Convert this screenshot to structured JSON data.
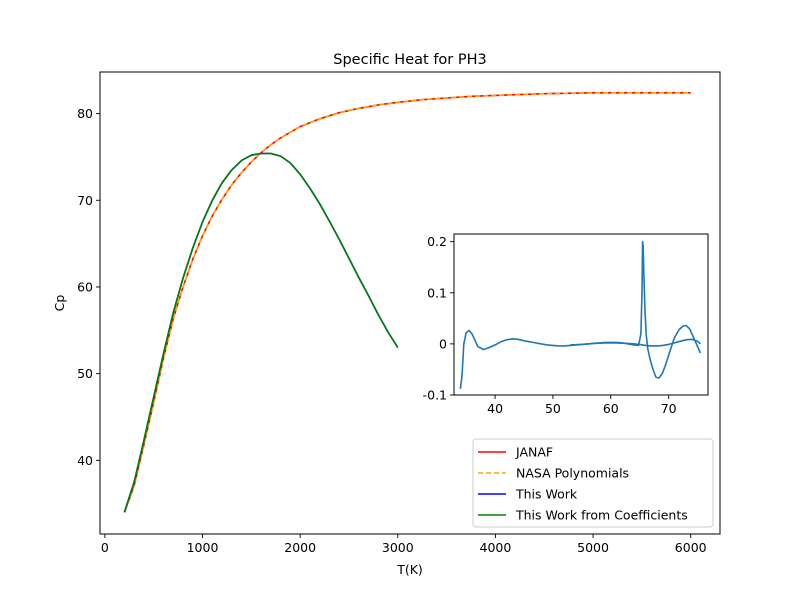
{
  "chart_data": [
    {
      "type": "line",
      "title": "Specific Heat for PH3",
      "xlabel": "T(K)",
      "ylabel": "Cp",
      "xlim": [
        -50,
        6300
      ],
      "ylim": [
        31.5,
        84.8
      ],
      "xticks": [
        0,
        1000,
        2000,
        3000,
        4000,
        5000,
        6000
      ],
      "yticks": [
        40,
        50,
        60,
        70,
        80
      ],
      "grid": false,
      "legend": "lower right",
      "series": [
        {
          "name": "JANAF",
          "color": "#ff0000",
          "style": "solid",
          "x": [
            200,
            300,
            400,
            500,
            600,
            700,
            800,
            900,
            1000,
            1100,
            1200,
            1300,
            1400,
            1500,
            1600,
            1700,
            1800,
            2000,
            2200,
            2400,
            2600,
            2800,
            3000,
            3250,
            3500,
            3750,
            4000,
            4500,
            5000,
            5500,
            6000
          ],
          "y": [
            34.0,
            37.1,
            41.8,
            46.7,
            51.8,
            56.3,
            60.0,
            63.2,
            65.9,
            68.2,
            70.1,
            71.8,
            73.2,
            74.4,
            75.5,
            76.4,
            77.2,
            78.5,
            79.4,
            80.1,
            80.6,
            81.0,
            81.3,
            81.6,
            81.8,
            82.0,
            82.1,
            82.3,
            82.4,
            82.4,
            82.4
          ]
        },
        {
          "name": "NASA Polynomials",
          "color": "#ffa500",
          "style": "dashed",
          "x": [
            200,
            300,
            400,
            500,
            600,
            700,
            800,
            900,
            1000,
            1100,
            1200,
            1300,
            1400,
            1500,
            1600,
            1700,
            1800,
            2000,
            2200,
            2400,
            2600,
            2800,
            3000,
            3250,
            3500,
            3750,
            4000,
            4500,
            5000,
            5500,
            6000
          ],
          "y": [
            34.0,
            37.1,
            41.8,
            46.7,
            51.8,
            56.3,
            60.0,
            63.2,
            65.9,
            68.2,
            70.1,
            71.8,
            73.2,
            74.4,
            75.5,
            76.4,
            77.2,
            78.5,
            79.4,
            80.1,
            80.6,
            81.0,
            81.3,
            81.6,
            81.8,
            82.0,
            82.1,
            82.3,
            82.4,
            82.4,
            82.4
          ]
        },
        {
          "name": "This Work",
          "color": "#0000ff",
          "style": "solid",
          "x": [
            200,
            300,
            400,
            500,
            600,
            700,
            800,
            900,
            1000,
            1100,
            1200,
            1300,
            1400,
            1500,
            1600,
            1700,
            1800,
            1900,
            2000,
            2100,
            2200,
            2300,
            2400,
            2500,
            2600,
            2700,
            2800,
            2900,
            3000
          ],
          "y": [
            34.0,
            37.5,
            42.3,
            47.3,
            52.3,
            57.0,
            61.0,
            64.5,
            67.5,
            70.0,
            72.0,
            73.5,
            74.6,
            75.2,
            75.4,
            75.4,
            75.1,
            74.3,
            73.0,
            71.4,
            69.6,
            67.6,
            65.5,
            63.3,
            61.1,
            59.0,
            56.8,
            54.8,
            53.0
          ]
        },
        {
          "name": "This Work from Coefficients",
          "color": "#008000",
          "style": "solid",
          "x": [
            200,
            300,
            400,
            500,
            600,
            700,
            800,
            900,
            1000,
            1100,
            1200,
            1300,
            1400,
            1500,
            1600,
            1700,
            1800,
            1900,
            2000,
            2100,
            2200,
            2300,
            2400,
            2500,
            2600,
            2700,
            2800,
            2900,
            3000
          ],
          "y": [
            34.0,
            37.5,
            42.3,
            47.3,
            52.3,
            57.0,
            61.0,
            64.5,
            67.5,
            70.0,
            72.0,
            73.5,
            74.6,
            75.2,
            75.4,
            75.4,
            75.1,
            74.3,
            73.0,
            71.4,
            69.6,
            67.6,
            65.5,
            63.3,
            61.1,
            59.0,
            56.8,
            54.8,
            53.0
          ]
        }
      ]
    },
    {
      "type": "line",
      "title": "",
      "xlabel": "",
      "ylabel": "",
      "xlim": [
        32.9,
        76.8
      ],
      "ylim": [
        -0.1,
        0.215
      ],
      "xticks": [
        40,
        50,
        60,
        70
      ],
      "yticks": [
        -0.1,
        0.0,
        0.1,
        0.2
      ],
      "grid": false,
      "series": [
        {
          "color": "#1f77b4",
          "x": [
            34.0,
            34.3,
            34.6,
            35.0,
            35.5,
            36.0,
            36.5,
            37.0,
            38.0,
            39.0,
            40.0,
            41.0,
            42.0,
            43.0,
            44.0,
            45.0,
            46.0,
            47.0,
            48.0,
            49.0,
            50.0,
            51.0,
            52.0,
            53.0,
            54.0,
            55.0,
            56.0,
            57.0,
            58.0,
            59.0,
            60.0,
            61.0,
            62.0,
            63.0,
            64.0,
            64.8,
            65.2,
            65.4,
            65.5,
            65.6,
            65.7,
            65.9,
            66.1,
            66.4,
            66.8,
            67.3,
            67.8,
            68.3,
            68.9,
            69.5,
            70.2,
            71.0,
            71.8,
            72.5,
            73.0,
            73.6,
            74.2,
            74.8,
            75.5
          ],
          "y": [
            -0.088,
            -0.06,
            0.0,
            0.022,
            0.026,
            0.02,
            0.008,
            -0.005,
            -0.011,
            -0.007,
            -0.002,
            0.004,
            0.008,
            0.01,
            0.009,
            0.006,
            0.004,
            0.002,
            0.0,
            -0.002,
            -0.003,
            -0.004,
            -0.004,
            -0.003,
            -0.002,
            -0.001,
            0.0,
            0.001,
            0.002,
            0.003,
            0.003,
            0.003,
            0.002,
            0.0,
            -0.002,
            -0.003,
            0.02,
            0.1,
            0.2,
            0.19,
            0.14,
            0.07,
            0.02,
            -0.01,
            -0.03,
            -0.05,
            -0.065,
            -0.067,
            -0.058,
            -0.04,
            -0.015,
            0.012,
            0.028,
            0.035,
            0.036,
            0.03,
            0.015,
            0.0,
            -0.018
          ]
        },
        {
          "color": "#1f77b4",
          "x": [
            53.0,
            55.0,
            57.0,
            59.0,
            61.0,
            63.0,
            65.0,
            66.0,
            67.0,
            68.0,
            69.0,
            70.0,
            71.0,
            72.0,
            73.0,
            74.0,
            75.0,
            75.5
          ],
          "y": [
            -0.002,
            -0.001,
            0.001,
            0.002,
            0.002,
            0.001,
            -0.001,
            -0.003,
            -0.004,
            -0.004,
            -0.003,
            -0.001,
            0.002,
            0.005,
            0.008,
            0.009,
            0.005,
            0.0
          ]
        }
      ]
    }
  ]
}
